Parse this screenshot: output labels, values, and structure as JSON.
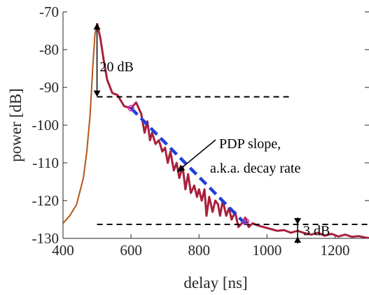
{
  "chart_data": {
    "type": "line",
    "xlabel": "delay [ns]",
    "ylabel": "power [dB]",
    "xlim": [
      400,
      1300
    ],
    "ylim": [
      -130,
      -70
    ],
    "xticks": [
      400,
      600,
      800,
      1000,
      1200
    ],
    "yticks": [
      -70,
      -80,
      -90,
      -100,
      -110,
      -120,
      -130
    ],
    "grid": false,
    "series": [
      {
        "role": "rise",
        "color": "#b5541a",
        "points": [
          [
            400,
            -126
          ],
          [
            420,
            -124
          ],
          [
            440,
            -121
          ],
          [
            460,
            -114
          ],
          [
            470,
            -107
          ],
          [
            480,
            -97
          ],
          [
            488,
            -84
          ],
          [
            494,
            -76
          ],
          [
            500,
            -73
          ]
        ]
      },
      {
        "role": "pdp",
        "color": "#a8203c",
        "points": [
          [
            500,
            -73
          ],
          [
            510,
            -77
          ],
          [
            520,
            -83
          ],
          [
            530,
            -88
          ],
          [
            545,
            -91.5
          ],
          [
            560,
            -92
          ],
          [
            580,
            -95
          ],
          [
            600,
            -95.5
          ],
          [
            615,
            -94
          ],
          [
            630,
            -97
          ],
          [
            640,
            -102
          ],
          [
            648,
            -99
          ],
          [
            656,
            -104
          ],
          [
            662,
            -102
          ],
          [
            672,
            -105
          ],
          [
            682,
            -104
          ],
          [
            692,
            -107
          ],
          [
            700,
            -106
          ],
          [
            708,
            -110
          ],
          [
            716,
            -107
          ],
          [
            726,
            -112
          ],
          [
            734,
            -110
          ],
          [
            742,
            -114
          ],
          [
            752,
            -111
          ],
          [
            760,
            -117
          ],
          [
            768,
            -113
          ],
          [
            776,
            -118
          ],
          [
            786,
            -116
          ],
          [
            794,
            -119
          ],
          [
            800,
            -117
          ],
          [
            808,
            -120
          ],
          [
            816,
            -117
          ],
          [
            822,
            -124
          ],
          [
            830,
            -119
          ],
          [
            840,
            -123
          ],
          [
            848,
            -120
          ],
          [
            856,
            -121
          ],
          [
            862,
            -124
          ],
          [
            870,
            -120
          ],
          [
            880,
            -124
          ],
          [
            888,
            -122
          ],
          [
            896,
            -125
          ],
          [
            906,
            -123
          ],
          [
            916,
            -127
          ],
          [
            926,
            -126
          ],
          [
            936,
            -124.5
          ],
          [
            946,
            -127
          ],
          [
            958,
            -126
          ],
          [
            970,
            -126.5
          ],
          [
            990,
            -127
          ],
          [
            1010,
            -127.5
          ],
          [
            1030,
            -128
          ],
          [
            1050,
            -127.8
          ],
          [
            1070,
            -128.5
          ],
          [
            1090,
            -128
          ],
          [
            1110,
            -128.6
          ],
          [
            1130,
            -129
          ],
          [
            1150,
            -128.5
          ],
          [
            1170,
            -129.3
          ],
          [
            1190,
            -128.8
          ],
          [
            1210,
            -129.5
          ],
          [
            1230,
            -129
          ],
          [
            1250,
            -129.6
          ],
          [
            1270,
            -129.4
          ],
          [
            1290,
            -129.8
          ],
          [
            1300,
            -129.9
          ]
        ]
      }
    ],
    "fit_line": {
      "color": "#1f3fd8",
      "x": [
        600,
        938
      ],
      "y": [
        -95.5,
        -126.3
      ]
    },
    "threshold_lines": [
      {
        "y": -92.5,
        "x": [
          500,
          1070
        ]
      },
      {
        "y": -126.3,
        "x": [
          500,
          1300
        ]
      }
    ],
    "markers": [
      [
        600,
        -95.5
      ],
      [
        938,
        -125.5
      ]
    ],
    "peak_arrow": {
      "x": 500,
      "y_top": -73,
      "y_bottom": -92.5
    },
    "three_db_arrow": {
      "x": 1090,
      "y_top": -126.3,
      "y_bottom": -129.5
    },
    "annotations": {
      "twenty_db": "20 dB",
      "three_db": "3 dB",
      "pdp_slope_line1": "PDP slope,",
      "pdp_slope_line2": "a.k.a. decay rate"
    }
  }
}
